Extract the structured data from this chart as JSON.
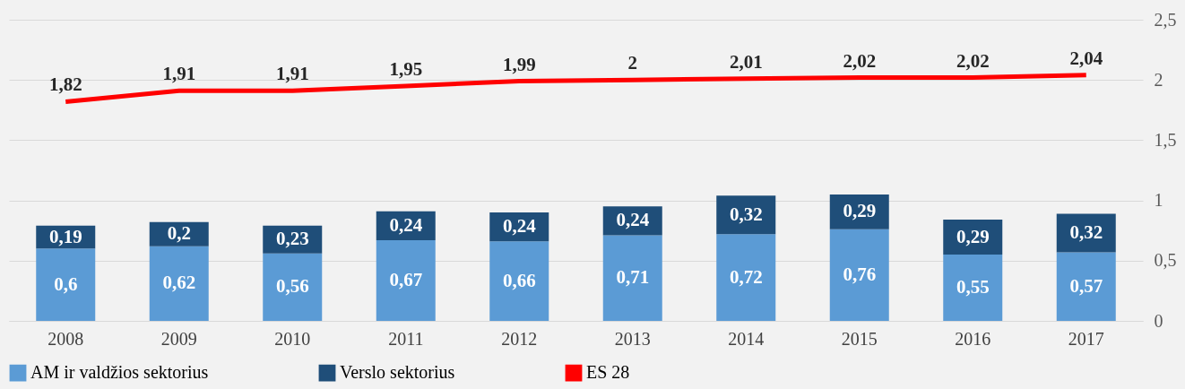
{
  "chart_data": {
    "type": "bar",
    "stacked": true,
    "categories": [
      "2008",
      "2009",
      "2010",
      "2011",
      "2012",
      "2013",
      "2014",
      "2015",
      "2016",
      "2017"
    ],
    "series": [
      {
        "name": "AM ir valdžios sektorius",
        "color": "#5b9bd5",
        "values": [
          0.6,
          0.62,
          0.56,
          0.67,
          0.66,
          0.71,
          0.72,
          0.76,
          0.55,
          0.57
        ],
        "value_labels": [
          "0,6",
          "0,62",
          "0,56",
          "0,67",
          "0,66",
          "0,71",
          "0,72",
          "0,76",
          "0,55",
          "0,57"
        ]
      },
      {
        "name": "Verslo sektorius",
        "color": "#1f4e79",
        "values": [
          0.19,
          0.2,
          0.23,
          0.24,
          0.24,
          0.24,
          0.32,
          0.29,
          0.29,
          0.32
        ],
        "value_labels": [
          "0,19",
          "0,2",
          "0,23",
          "0,24",
          "0,24",
          "0,24",
          "0,32",
          "0,29",
          "0,29",
          "0,32"
        ]
      },
      {
        "name": "ES 28",
        "type": "line",
        "color": "#ff0000",
        "values": [
          1.82,
          1.91,
          1.91,
          1.95,
          1.99,
          2,
          2.01,
          2.02,
          2.02,
          2.04
        ],
        "value_labels": [
          "1,82",
          "1,91",
          "1,91",
          "1,95",
          "1,99",
          "2",
          "2,01",
          "2,02",
          "2,02",
          "2,04"
        ]
      }
    ],
    "ylim": [
      0,
      2.5
    ],
    "yticks": [
      0,
      {
        "value": 0.5,
        "label": "0,5"
      },
      1,
      {
        "value": 1.5,
        "label": "1,5"
      },
      2,
      {
        "value": 2.5,
        "label": "2,5"
      }
    ],
    "grid": "y",
    "legend": "bottom",
    "marker": "none",
    "line_style": "solid"
  }
}
